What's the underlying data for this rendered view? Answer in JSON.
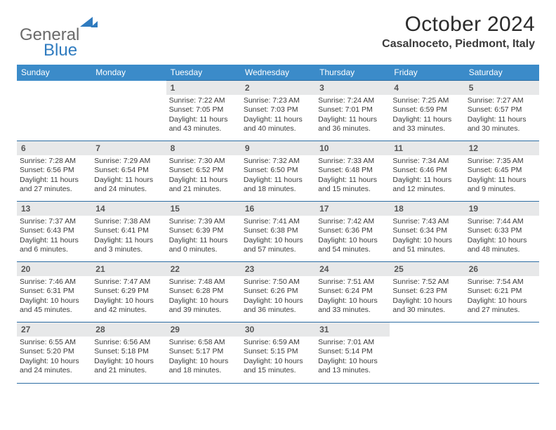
{
  "logo": {
    "part1": "General",
    "part2": "Blue"
  },
  "title": "October 2024",
  "location": "Casalnoceto, Piedmont, Italy",
  "days_header": [
    "Sunday",
    "Monday",
    "Tuesday",
    "Wednesday",
    "Thursday",
    "Friday",
    "Saturday"
  ],
  "header_bg": "#3b8bc9",
  "header_fg": "#ffffff",
  "daynum_bg": "#e7e8e9",
  "border_color": "#2d6da3",
  "weeks": [
    [
      null,
      null,
      {
        "n": "1",
        "sr": "Sunrise: 7:22 AM",
        "ss": "Sunset: 7:05 PM",
        "d1": "Daylight: 11 hours",
        "d2": "and 43 minutes."
      },
      {
        "n": "2",
        "sr": "Sunrise: 7:23 AM",
        "ss": "Sunset: 7:03 PM",
        "d1": "Daylight: 11 hours",
        "d2": "and 40 minutes."
      },
      {
        "n": "3",
        "sr": "Sunrise: 7:24 AM",
        "ss": "Sunset: 7:01 PM",
        "d1": "Daylight: 11 hours",
        "d2": "and 36 minutes."
      },
      {
        "n": "4",
        "sr": "Sunrise: 7:25 AM",
        "ss": "Sunset: 6:59 PM",
        "d1": "Daylight: 11 hours",
        "d2": "and 33 minutes."
      },
      {
        "n": "5",
        "sr": "Sunrise: 7:27 AM",
        "ss": "Sunset: 6:57 PM",
        "d1": "Daylight: 11 hours",
        "d2": "and 30 minutes."
      }
    ],
    [
      {
        "n": "6",
        "sr": "Sunrise: 7:28 AM",
        "ss": "Sunset: 6:56 PM",
        "d1": "Daylight: 11 hours",
        "d2": "and 27 minutes."
      },
      {
        "n": "7",
        "sr": "Sunrise: 7:29 AM",
        "ss": "Sunset: 6:54 PM",
        "d1": "Daylight: 11 hours",
        "d2": "and 24 minutes."
      },
      {
        "n": "8",
        "sr": "Sunrise: 7:30 AM",
        "ss": "Sunset: 6:52 PM",
        "d1": "Daylight: 11 hours",
        "d2": "and 21 minutes."
      },
      {
        "n": "9",
        "sr": "Sunrise: 7:32 AM",
        "ss": "Sunset: 6:50 PM",
        "d1": "Daylight: 11 hours",
        "d2": "and 18 minutes."
      },
      {
        "n": "10",
        "sr": "Sunrise: 7:33 AM",
        "ss": "Sunset: 6:48 PM",
        "d1": "Daylight: 11 hours",
        "d2": "and 15 minutes."
      },
      {
        "n": "11",
        "sr": "Sunrise: 7:34 AM",
        "ss": "Sunset: 6:46 PM",
        "d1": "Daylight: 11 hours",
        "d2": "and 12 minutes."
      },
      {
        "n": "12",
        "sr": "Sunrise: 7:35 AM",
        "ss": "Sunset: 6:45 PM",
        "d1": "Daylight: 11 hours",
        "d2": "and 9 minutes."
      }
    ],
    [
      {
        "n": "13",
        "sr": "Sunrise: 7:37 AM",
        "ss": "Sunset: 6:43 PM",
        "d1": "Daylight: 11 hours",
        "d2": "and 6 minutes."
      },
      {
        "n": "14",
        "sr": "Sunrise: 7:38 AM",
        "ss": "Sunset: 6:41 PM",
        "d1": "Daylight: 11 hours",
        "d2": "and 3 minutes."
      },
      {
        "n": "15",
        "sr": "Sunrise: 7:39 AM",
        "ss": "Sunset: 6:39 PM",
        "d1": "Daylight: 11 hours",
        "d2": "and 0 minutes."
      },
      {
        "n": "16",
        "sr": "Sunrise: 7:41 AM",
        "ss": "Sunset: 6:38 PM",
        "d1": "Daylight: 10 hours",
        "d2": "and 57 minutes."
      },
      {
        "n": "17",
        "sr": "Sunrise: 7:42 AM",
        "ss": "Sunset: 6:36 PM",
        "d1": "Daylight: 10 hours",
        "d2": "and 54 minutes."
      },
      {
        "n": "18",
        "sr": "Sunrise: 7:43 AM",
        "ss": "Sunset: 6:34 PM",
        "d1": "Daylight: 10 hours",
        "d2": "and 51 minutes."
      },
      {
        "n": "19",
        "sr": "Sunrise: 7:44 AM",
        "ss": "Sunset: 6:33 PM",
        "d1": "Daylight: 10 hours",
        "d2": "and 48 minutes."
      }
    ],
    [
      {
        "n": "20",
        "sr": "Sunrise: 7:46 AM",
        "ss": "Sunset: 6:31 PM",
        "d1": "Daylight: 10 hours",
        "d2": "and 45 minutes."
      },
      {
        "n": "21",
        "sr": "Sunrise: 7:47 AM",
        "ss": "Sunset: 6:29 PM",
        "d1": "Daylight: 10 hours",
        "d2": "and 42 minutes."
      },
      {
        "n": "22",
        "sr": "Sunrise: 7:48 AM",
        "ss": "Sunset: 6:28 PM",
        "d1": "Daylight: 10 hours",
        "d2": "and 39 minutes."
      },
      {
        "n": "23",
        "sr": "Sunrise: 7:50 AM",
        "ss": "Sunset: 6:26 PM",
        "d1": "Daylight: 10 hours",
        "d2": "and 36 minutes."
      },
      {
        "n": "24",
        "sr": "Sunrise: 7:51 AM",
        "ss": "Sunset: 6:24 PM",
        "d1": "Daylight: 10 hours",
        "d2": "and 33 minutes."
      },
      {
        "n": "25",
        "sr": "Sunrise: 7:52 AM",
        "ss": "Sunset: 6:23 PM",
        "d1": "Daylight: 10 hours",
        "d2": "and 30 minutes."
      },
      {
        "n": "26",
        "sr": "Sunrise: 7:54 AM",
        "ss": "Sunset: 6:21 PM",
        "d1": "Daylight: 10 hours",
        "d2": "and 27 minutes."
      }
    ],
    [
      {
        "n": "27",
        "sr": "Sunrise: 6:55 AM",
        "ss": "Sunset: 5:20 PM",
        "d1": "Daylight: 10 hours",
        "d2": "and 24 minutes."
      },
      {
        "n": "28",
        "sr": "Sunrise: 6:56 AM",
        "ss": "Sunset: 5:18 PM",
        "d1": "Daylight: 10 hours",
        "d2": "and 21 minutes."
      },
      {
        "n": "29",
        "sr": "Sunrise: 6:58 AM",
        "ss": "Sunset: 5:17 PM",
        "d1": "Daylight: 10 hours",
        "d2": "and 18 minutes."
      },
      {
        "n": "30",
        "sr": "Sunrise: 6:59 AM",
        "ss": "Sunset: 5:15 PM",
        "d1": "Daylight: 10 hours",
        "d2": "and 15 minutes."
      },
      {
        "n": "31",
        "sr": "Sunrise: 7:01 AM",
        "ss": "Sunset: 5:14 PM",
        "d1": "Daylight: 10 hours",
        "d2": "and 13 minutes."
      },
      null,
      null
    ]
  ]
}
